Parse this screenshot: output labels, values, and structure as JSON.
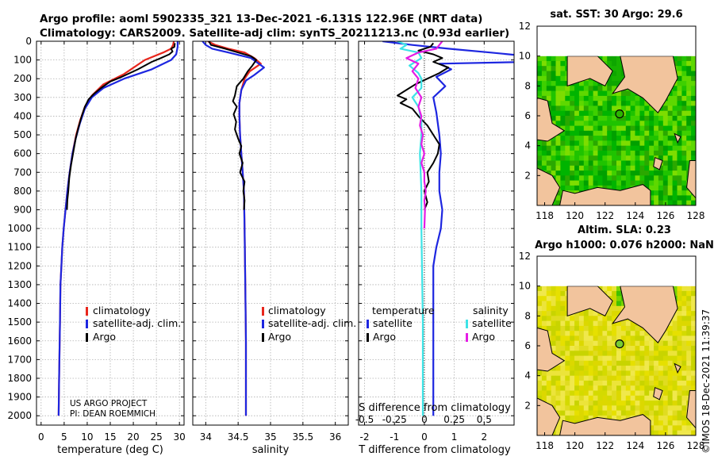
{
  "header": {
    "line1": "Argo profile: aoml 5902335_321 13-Dec-2021 -6.131S 122.96E (NRT data)",
    "line2": "Climatology: CARS2009. Satellite-adj clim: synTS_20211213.nc (0.93d earlier)"
  },
  "credits": {
    "project": "US ARGO PROJECT",
    "pi": "PI: DEAN ROEMMICH"
  },
  "timestamp": "©IMOS 18-Dec-2021 11:39:37",
  "colors": {
    "climatology": "#e8261c",
    "satellite": "#1d26e0",
    "argo": "#000000",
    "sat_salinity": "#3de3e6",
    "argo_salinity": "#e51ce5"
  },
  "chart_data": [
    {
      "id": "temperature",
      "type": "line",
      "xlabel": "temperature (deg C)",
      "ylabel": "",
      "xlim": [
        -1,
        31
      ],
      "ylim": [
        2050,
        0
      ],
      "xticks": [
        0,
        5,
        10,
        15,
        20,
        25,
        30
      ],
      "yticks": [
        0,
        100,
        200,
        300,
        400,
        500,
        600,
        700,
        800,
        900,
        1000,
        1100,
        1200,
        1300,
        1400,
        1500,
        1600,
        1700,
        1800,
        1900,
        2000
      ],
      "grid": true,
      "legend": [
        "climatology",
        "satellite-adj. clim.",
        "Argo"
      ],
      "series": [
        {
          "name": "climatology",
          "color": "#e8261c",
          "width": 2.2,
          "points": [
            [
              28.8,
              0
            ],
            [
              28.6,
              20
            ],
            [
              28.2,
              40
            ],
            [
              26.5,
              60
            ],
            [
              22.5,
              100
            ],
            [
              18,
              175
            ],
            [
              13.5,
              230
            ],
            [
              11,
              290
            ],
            [
              9.5,
              350
            ],
            [
              8.5,
              420
            ],
            [
              7.6,
              500
            ],
            [
              6.8,
              600
            ],
            [
              6.2,
              700
            ],
            [
              5.7,
              800
            ],
            [
              5.3,
              900
            ],
            [
              4.9,
              1000
            ],
            [
              4.6,
              1100
            ],
            [
              4.4,
              1200
            ],
            [
              4.2,
              1300
            ],
            [
              4.1,
              1500
            ],
            [
              3.9,
              1800
            ],
            [
              3.8,
              2000
            ]
          ]
        },
        {
          "name": "satellite-adj. clim.",
          "color": "#1d26e0",
          "width": 2.2,
          "points": [
            [
              29.6,
              0
            ],
            [
              29.6,
              30
            ],
            [
              29.3,
              70
            ],
            [
              28.2,
              100
            ],
            [
              24,
              150
            ],
            [
              18,
              200
            ],
            [
              13.5,
              250
            ],
            [
              11,
              300
            ],
            [
              9.5,
              360
            ],
            [
              8.4,
              440
            ],
            [
              7.5,
              520
            ],
            [
              6.8,
              600
            ],
            [
              6.2,
              700
            ],
            [
              5.7,
              800
            ],
            [
              5.3,
              900
            ],
            [
              4.9,
              1000
            ],
            [
              4.6,
              1100
            ],
            [
              4.4,
              1200
            ],
            [
              4.2,
              1300
            ],
            [
              4.1,
              1500
            ],
            [
              3.9,
              1800
            ],
            [
              3.8,
              2000
            ]
          ]
        },
        {
          "name": "Argo",
          "color": "#000000",
          "width": 2,
          "points": [
            [
              29,
              10
            ],
            [
              28.9,
              30
            ],
            [
              28.2,
              40
            ],
            [
              28.5,
              55
            ],
            [
              27.8,
              70
            ],
            [
              26,
              90
            ],
            [
              24,
              110
            ],
            [
              21,
              150
            ],
            [
              17.5,
              190
            ],
            [
              15,
              215
            ],
            [
              13,
              250
            ],
            [
              11.5,
              280
            ],
            [
              10.3,
              310
            ],
            [
              9.5,
              350
            ],
            [
              8.8,
              400
            ],
            [
              8.1,
              460
            ],
            [
              7.5,
              520
            ],
            [
              7,
              590
            ],
            [
              6.5,
              660
            ],
            [
              6.1,
              730
            ],
            [
              5.9,
              800
            ],
            [
              5.7,
              850
            ],
            [
              5.6,
              900
            ]
          ]
        }
      ],
      "annotations": [
        "US ARGO PROJECT",
        "PI: DEAN ROEMMICH"
      ]
    },
    {
      "id": "salinity",
      "type": "line",
      "xlabel": "salinity",
      "xlim": [
        33.8,
        36.2
      ],
      "ylim": [
        2050,
        0
      ],
      "xticks": [
        34,
        34.5,
        35,
        35.5,
        36
      ],
      "xticklabels": [
        "34",
        "34.5",
        "35",
        "35.5",
        "36"
      ],
      "grid": true,
      "legend": [
        "climatology",
        "satellite-adj. clim.",
        "Argo"
      ],
      "series": [
        {
          "name": "climatology",
          "color": "#e8261c",
          "width": 2.2,
          "points": [
            [
              34.03,
              0
            ],
            [
              34.15,
              20
            ],
            [
              34.35,
              40
            ],
            [
              34.6,
              60
            ],
            [
              34.75,
              90
            ],
            [
              34.85,
              120
            ],
            [
              34.68,
              160
            ],
            [
              34.6,
              200
            ],
            [
              34.55,
              260
            ],
            [
              34.52,
              330
            ],
            [
              34.52,
              400
            ],
            [
              34.53,
              500
            ],
            [
              34.55,
              600
            ],
            [
              34.57,
              700
            ],
            [
              34.59,
              800
            ],
            [
              34.6,
              1000
            ],
            [
              34.61,
              1300
            ],
            [
              34.62,
              1600
            ],
            [
              34.62,
              2000
            ]
          ]
        },
        {
          "name": "satellite-adj. clim.",
          "color": "#1d26e0",
          "width": 2.2,
          "points": [
            [
              33.95,
              0
            ],
            [
              34.0,
              20
            ],
            [
              34.1,
              40
            ],
            [
              34.35,
              60
            ],
            [
              34.7,
              90
            ],
            [
              34.9,
              140
            ],
            [
              34.75,
              180
            ],
            [
              34.62,
              210
            ],
            [
              34.55,
              260
            ],
            [
              34.52,
              330
            ],
            [
              34.52,
              400
            ],
            [
              34.53,
              500
            ],
            [
              34.55,
              600
            ],
            [
              34.57,
              700
            ],
            [
              34.59,
              800
            ],
            [
              34.6,
              1000
            ],
            [
              34.61,
              1300
            ],
            [
              34.62,
              1600
            ],
            [
              34.62,
              2000
            ]
          ]
        },
        {
          "name": "Argo",
          "color": "#000000",
          "width": 2,
          "points": [
            [
              34.05,
              0
            ],
            [
              34.08,
              20
            ],
            [
              34.3,
              40
            ],
            [
              34.5,
              60
            ],
            [
              34.7,
              80
            ],
            [
              34.78,
              100
            ],
            [
              34.72,
              130
            ],
            [
              34.65,
              160
            ],
            [
              34.58,
              200
            ],
            [
              34.48,
              240
            ],
            [
              34.45,
              290
            ],
            [
              34.42,
              320
            ],
            [
              34.48,
              350
            ],
            [
              34.43,
              390
            ],
            [
              34.47,
              430
            ],
            [
              34.45,
              470
            ],
            [
              34.5,
              520
            ],
            [
              34.55,
              560
            ],
            [
              34.52,
              600
            ],
            [
              34.57,
              650
            ],
            [
              34.53,
              700
            ],
            [
              34.6,
              750
            ],
            [
              34.58,
              800
            ],
            [
              34.6,
              850
            ],
            [
              34.59,
              900
            ]
          ]
        }
      ]
    },
    {
      "id": "difference",
      "type": "line",
      "xlabel": "T difference from climatology",
      "x2label": "S difference from climatology",
      "xlim": [
        -2.2,
        3.0
      ],
      "ylim": [
        2050,
        0
      ],
      "xticks": [
        -2,
        -1,
        0,
        1,
        2
      ],
      "xticklabels": [
        "-2",
        "-1",
        "0",
        "1",
        "2"
      ],
      "s_ticklabels": [
        "-0.5",
        "-0.25",
        "0",
        "0.25",
        "0.5"
      ],
      "s_scale": 4,
      "grid": true,
      "legend_temperature": {
        "title": "temperature",
        "items": [
          "satellite",
          "Argo"
        ]
      },
      "legend_salinity": {
        "title": "salinity",
        "items": [
          "satellite",
          "Argo"
        ]
      },
      "series": [
        {
          "name": "T satellite",
          "color": "#1d26e0",
          "width": 2.2,
          "points": [
            [
              -1.4,
              0
            ],
            [
              -0.4,
              20
            ],
            [
              0.8,
              40
            ],
            [
              2.2,
              60
            ],
            [
              3.5,
              80
            ],
            [
              3.5,
              110
            ],
            [
              0.5,
              120
            ],
            [
              0.9,
              150
            ],
            [
              0.4,
              190
            ],
            [
              0.7,
              240
            ],
            [
              0.3,
              300
            ],
            [
              0.4,
              380
            ],
            [
              0.5,
              500
            ],
            [
              0.55,
              600
            ],
            [
              0.5,
              700
            ],
            [
              0.5,
              800
            ],
            [
              0.6,
              900
            ],
            [
              0.55,
              1000
            ],
            [
              0.4,
              1100
            ],
            [
              0.3,
              1200
            ],
            [
              0.3,
              1500
            ],
            [
              0.3,
              2000
            ]
          ]
        },
        {
          "name": "T Argo",
          "color": "#000000",
          "width": 2,
          "points": [
            [
              0.3,
              10
            ],
            [
              0.2,
              30
            ],
            [
              -0.2,
              50
            ],
            [
              0.3,
              70
            ],
            [
              0.6,
              90
            ],
            [
              0.3,
              110
            ],
            [
              0.8,
              140
            ],
            [
              0.5,
              170
            ],
            [
              0.1,
              200
            ],
            [
              -0.3,
              230
            ],
            [
              -0.6,
              260
            ],
            [
              -0.9,
              290
            ],
            [
              -0.6,
              310
            ],
            [
              -0.8,
              330
            ],
            [
              -0.4,
              360
            ],
            [
              -0.2,
              400
            ],
            [
              0.1,
              450
            ],
            [
              0.3,
              500
            ],
            [
              0.5,
              550
            ],
            [
              0.45,
              600
            ],
            [
              0.3,
              650
            ],
            [
              0.1,
              700
            ],
            [
              0.15,
              750
            ],
            [
              0.0,
              800
            ],
            [
              0.1,
              860
            ],
            [
              0.0,
              900
            ]
          ]
        },
        {
          "name": "S satellite",
          "color": "#3de3e6",
          "width": 2.2,
          "points": [
            [
              -0.9,
              0
            ],
            [
              -0.6,
              20
            ],
            [
              -0.8,
              40
            ],
            [
              -0.2,
              60
            ],
            [
              -0.1,
              90
            ],
            [
              -0.5,
              130
            ],
            [
              -0.2,
              170
            ],
            [
              -0.1,
              200
            ],
            [
              -0.1,
              250
            ],
            [
              -0.4,
              300
            ],
            [
              -0.2,
              350
            ],
            [
              -0.1,
              420
            ],
            [
              -0.1,
              500
            ],
            [
              -0.15,
              600
            ],
            [
              -0.1,
              800
            ],
            [
              -0.1,
              1000
            ],
            [
              -0.08,
              1200
            ],
            [
              -0.05,
              1500
            ],
            [
              -0.05,
              2000
            ]
          ]
        },
        {
          "name": "S Argo",
          "color": "#e51ce5",
          "width": 2.2,
          "points": [
            [
              0.6,
              0
            ],
            [
              0.5,
              20
            ],
            [
              0.4,
              40
            ],
            [
              -0.2,
              60
            ],
            [
              -0.6,
              90
            ],
            [
              -0.2,
              120
            ],
            [
              -0.4,
              160
            ],
            [
              -0.2,
              200
            ],
            [
              -0.3,
              250
            ],
            [
              -0.1,
              300
            ],
            [
              -0.2,
              350
            ],
            [
              -0.1,
              400
            ],
            [
              -0.15,
              450
            ],
            [
              -0.05,
              500
            ],
            [
              -0.1,
              550
            ],
            [
              0.0,
              600
            ],
            [
              -0.1,
              650
            ],
            [
              0.0,
              700
            ],
            [
              0.0,
              750
            ],
            [
              0.05,
              800
            ],
            [
              0.0,
              850
            ],
            [
              0.02,
              900
            ],
            [
              0.0,
              1000
            ]
          ]
        }
      ]
    },
    {
      "id": "map_sst",
      "type": "heatmap",
      "title": "sat. SST: 30 Argo: 29.6",
      "xlim": [
        117.5,
        128
      ],
      "ylim": [
        0,
        12
      ],
      "xticks": [
        118,
        120,
        122,
        124,
        126,
        128
      ],
      "yticks": [
        2,
        4,
        6,
        8,
        10,
        12
      ],
      "float_position": [
        122.96,
        6.13
      ],
      "colormap": "green"
    },
    {
      "id": "map_sla",
      "type": "heatmap",
      "title_line1": "Altim. SLA: 0.23",
      "title_line2": "Argo h1000: 0.076 h2000: NaN",
      "xlim": [
        117.5,
        128
      ],
      "ylim": [
        0,
        12
      ],
      "xticks": [
        118,
        120,
        122,
        124,
        126,
        128
      ],
      "yticks": [
        2,
        4,
        6,
        8,
        10,
        12
      ],
      "float_position": [
        122.96,
        6.13
      ],
      "colormap": "yellow"
    }
  ]
}
